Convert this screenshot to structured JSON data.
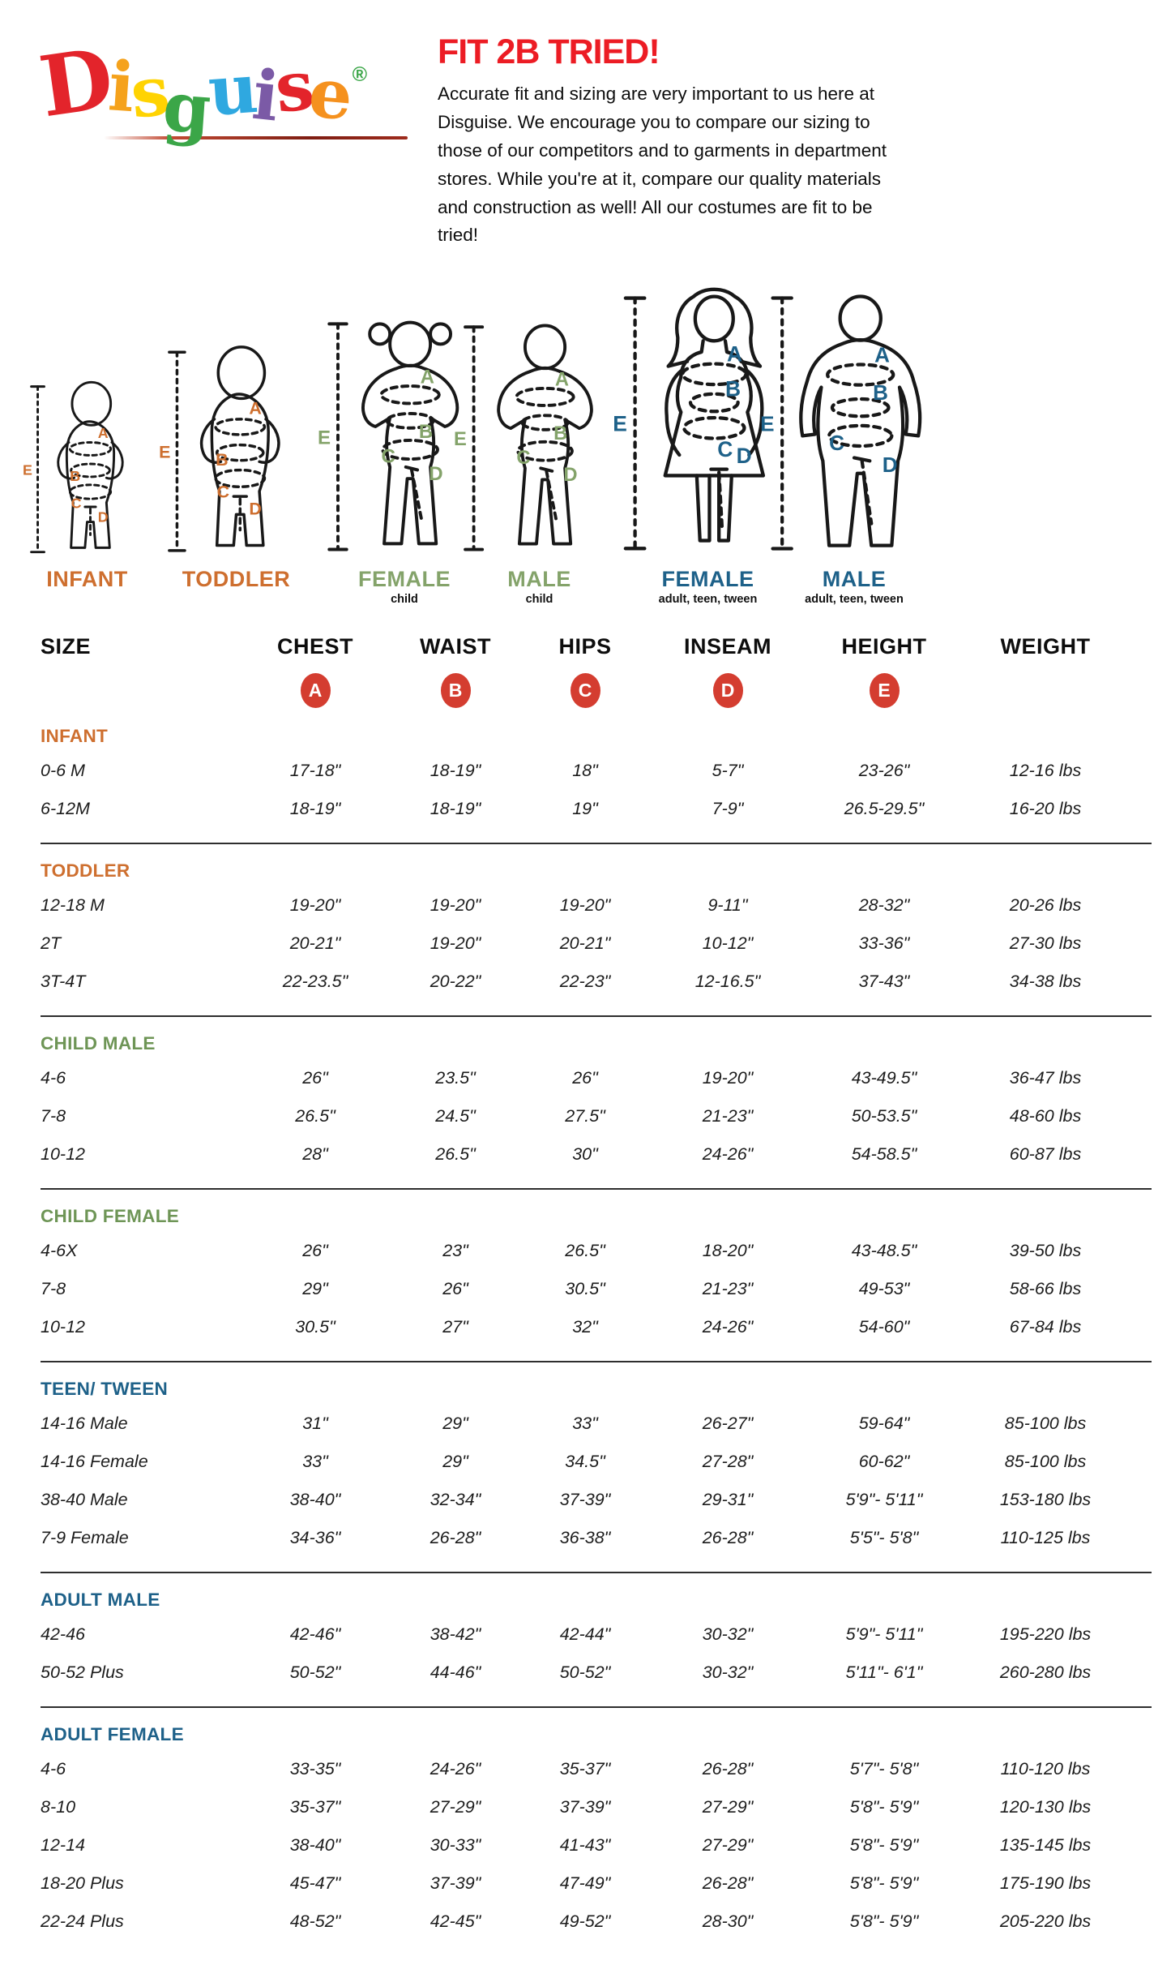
{
  "logo": {
    "letters": [
      {
        "ch": "D",
        "color": "#E3242B"
      },
      {
        "ch": "i",
        "color": "#F5A21C"
      },
      {
        "ch": "s",
        "color": "#FFD302"
      },
      {
        "ch": "g",
        "color": "#3BA648"
      },
      {
        "ch": "u",
        "color": "#2FA8E0"
      },
      {
        "ch": "i",
        "color": "#7B5AA6"
      },
      {
        "ch": "s",
        "color": "#E3242B"
      },
      {
        "ch": "e",
        "color": "#F5911E"
      }
    ],
    "registered": "®"
  },
  "header": {
    "title": "FIT 2B TRIED!",
    "body": "Accurate fit and sizing are very important to us here at Disguise. We encourage you to compare our sizing to those of our competitors and to garments in department stores. While you're at it, compare our quality materials and construction as well! All our costumes are fit to be tried!"
  },
  "theme": {
    "title_red": "#EC1C24",
    "orange": "#CE6F2F",
    "green": "#6E9556",
    "blue": "#1E6189",
    "badge_red": "#D43D30"
  },
  "measurement_letters": {
    "chest": "A",
    "waist": "B",
    "hips": "C",
    "inseam": "D",
    "height": "E"
  },
  "figures": [
    {
      "id": "infant",
      "type": "baby",
      "label": "INFANT",
      "sublabel": "",
      "color": "#CE6F2F"
    },
    {
      "id": "toddler",
      "type": "baby",
      "label": "TODDLER",
      "sublabel": "",
      "color": "#CE6F2F"
    },
    {
      "id": "child-female",
      "type": "child-female",
      "label": "FEMALE",
      "sublabel": "child",
      "color": "#84A36A"
    },
    {
      "id": "child-male",
      "type": "child-male",
      "label": "MALE",
      "sublabel": "child",
      "color": "#84A36A"
    },
    {
      "id": "adult-female",
      "type": "adult-female",
      "label": "FEMALE",
      "sublabel": "adult, teen, tween",
      "color": "#1E6189"
    },
    {
      "id": "adult-male",
      "type": "adult-male",
      "label": "MALE",
      "sublabel": "adult, teen, tween",
      "color": "#1E6189"
    }
  ],
  "table": {
    "columns": [
      "SIZE",
      "CHEST",
      "WAIST",
      "HIPS",
      "INSEAM",
      "HEIGHT",
      "WEIGHT"
    ],
    "badges": [
      "A",
      "B",
      "C",
      "D",
      "E"
    ],
    "sections": [
      {
        "title": "INFANT",
        "color": "orange",
        "rows": [
          [
            "0-6 M",
            "17-18\"",
            "18-19\"",
            "18\"",
            "5-7\"",
            "23-26\"",
            "12-16 lbs"
          ],
          [
            "6-12M",
            "18-19\"",
            "18-19\"",
            "19\"",
            "7-9\"",
            "26.5-29.5\"",
            "16-20 lbs"
          ]
        ]
      },
      {
        "title": "TODDLER",
        "color": "orange",
        "rows": [
          [
            "12-18 M",
            "19-20\"",
            "19-20\"",
            "19-20\"",
            "9-11\"",
            "28-32\"",
            "20-26 lbs"
          ],
          [
            "2T",
            "20-21\"",
            "19-20\"",
            "20-21\"",
            "10-12\"",
            "33-36\"",
            "27-30 lbs"
          ],
          [
            "3T-4T",
            "22-23.5\"",
            "20-22\"",
            "22-23\"",
            "12-16.5\"",
            "37-43\"",
            "34-38 lbs"
          ]
        ]
      },
      {
        "title": "CHILD MALE",
        "color": "green",
        "rows": [
          [
            "4-6",
            "26\"",
            "23.5\"",
            "26\"",
            "19-20\"",
            "43-49.5\"",
            "36-47 lbs"
          ],
          [
            "7-8",
            "26.5\"",
            "24.5\"",
            "27.5\"",
            "21-23\"",
            "50-53.5\"",
            "48-60 lbs"
          ],
          [
            "10-12",
            "28\"",
            "26.5\"",
            "30\"",
            "24-26\"",
            "54-58.5\"",
            "60-87 lbs"
          ]
        ]
      },
      {
        "title": "CHILD FEMALE",
        "color": "green",
        "rows": [
          [
            "4-6X",
            "26\"",
            "23\"",
            "26.5\"",
            "18-20\"",
            "43-48.5\"",
            "39-50 lbs"
          ],
          [
            "7-8",
            "29\"",
            "26\"",
            "30.5\"",
            "21-23\"",
            "49-53\"",
            "58-66 lbs"
          ],
          [
            "10-12",
            "30.5\"",
            "27\"",
            "32\"",
            "24-26\"",
            "54-60\"",
            "67-84 lbs"
          ]
        ]
      },
      {
        "title": "TEEN/ TWEEN",
        "color": "blue",
        "rows": [
          [
            "14-16 Male",
            "31\"",
            "29\"",
            "33\"",
            "26-27\"",
            "59-64\"",
            "85-100 lbs"
          ],
          [
            "14-16 Female",
            "33\"",
            "29\"",
            "34.5\"",
            "27-28\"",
            "60-62\"",
            "85-100 lbs"
          ],
          [
            "38-40 Male",
            "38-40\"",
            "32-34\"",
            "37-39\"",
            "29-31\"",
            "5'9\"- 5'11\"",
            "153-180 lbs"
          ],
          [
            "7-9 Female",
            "34-36\"",
            "26-28\"",
            "36-38\"",
            "26-28\"",
            "5'5\"- 5'8\"",
            "110-125 lbs"
          ]
        ]
      },
      {
        "title": "ADULT MALE",
        "color": "blue",
        "rows": [
          [
            "42-46",
            "42-46\"",
            "38-42\"",
            "42-44\"",
            "30-32\"",
            "5'9\"- 5'11\"",
            "195-220 lbs"
          ],
          [
            "50-52 Plus",
            "50-52\"",
            "44-46\"",
            "50-52\"",
            "30-32\"",
            "5'11\"- 6'1\"",
            "260-280 lbs"
          ]
        ]
      },
      {
        "title": "ADULT FEMALE",
        "color": "blue",
        "rows": [
          [
            "4-6",
            "33-35\"",
            "24-26\"",
            "35-37\"",
            "26-28\"",
            "5'7\"- 5'8\"",
            "110-120 lbs"
          ],
          [
            "8-10",
            "35-37\"",
            "27-29\"",
            "37-39\"",
            "27-29\"",
            "5'8\"- 5'9\"",
            "120-130 lbs"
          ],
          [
            "12-14",
            "38-40\"",
            "30-33\"",
            "41-43\"",
            "27-29\"",
            "5'8\"- 5'9\"",
            "135-145 lbs"
          ],
          [
            "18-20 Plus",
            "45-47\"",
            "37-39\"",
            "47-49\"",
            "26-28\"",
            "5'8\"- 5'9\"",
            "175-190 lbs"
          ],
          [
            "22-24 Plus",
            "48-52\"",
            "42-45\"",
            "49-52\"",
            "28-30\"",
            "5'8\"- 5'9\"",
            "205-220 lbs"
          ]
        ]
      }
    ]
  }
}
